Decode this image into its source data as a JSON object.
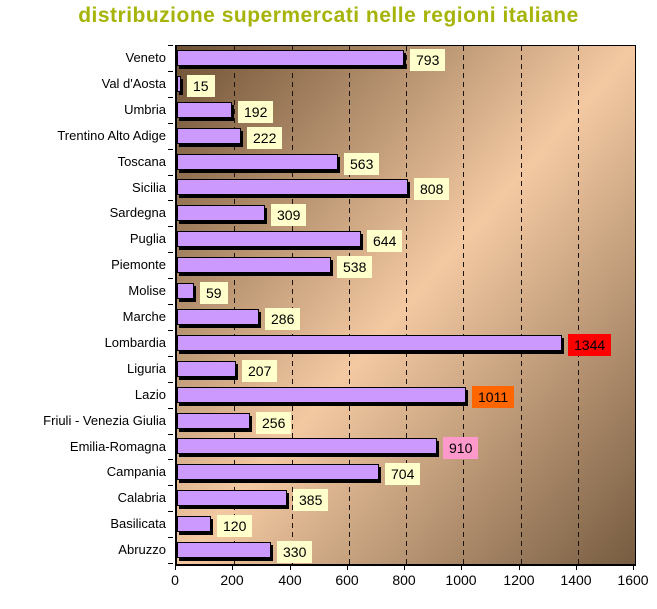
{
  "chart_data": {
    "type": "bar",
    "orientation": "horizontal",
    "title": "distribuzione supermercati nelle regioni italiane",
    "xlabel": "",
    "ylabel": "",
    "xlim": [
      0,
      1600
    ],
    "xticks": [
      0,
      200,
      400,
      600,
      800,
      1000,
      1200,
      1400,
      1600
    ],
    "grid": "vertical-dashed",
    "legend": "none",
    "categories_top_to_bottom": [
      "Veneto",
      "Val d'Aosta",
      "Umbria",
      "Trentino Alto Adige",
      "Toscana",
      "Sicilia",
      "Sardegna",
      "Puglia",
      "Piemonte",
      "Molise",
      "Marche",
      "Lombardia",
      "Liguria",
      "Lazio",
      "Friuli - Venezia Giulia",
      "Emilia-Romagna",
      "Campania",
      "Calabria",
      "Basilicata",
      "Abruzzo"
    ],
    "values": [
      793,
      15,
      192,
      222,
      563,
      808,
      309,
      644,
      538,
      59,
      286,
      1344,
      207,
      1011,
      256,
      910,
      704,
      385,
      120,
      330
    ],
    "data_label_backgrounds": [
      "#FFFFCC",
      "#FFFFCC",
      "#FFFFCC",
      "#FFFFCC",
      "#FFFFCC",
      "#FFFFCC",
      "#FFFFCC",
      "#FFFFCC",
      "#FFFFCC",
      "#FFFFCC",
      "#FFFFCC",
      "#FF0000",
      "#FFFFCC",
      "#FF6600",
      "#FFFFCC",
      "#FF99CC",
      "#FFFFCC",
      "#FFFFCC",
      "#FFFFCC",
      "#FFFFCC"
    ],
    "colors": {
      "title_text": "#A6B40A",
      "bar_fill": "#CC99FF",
      "bar_border": "#000000",
      "bar_shadow": "#000000",
      "data_label_text": "#000000",
      "axis_text": "#000000",
      "plot_gradient_dark_topleft": "#6E5134",
      "plot_gradient_light_center": "#F3C9A2",
      "plot_gradient_dark_bottomright": "#775C41",
      "page_background": "#FFFFFF"
    }
  }
}
